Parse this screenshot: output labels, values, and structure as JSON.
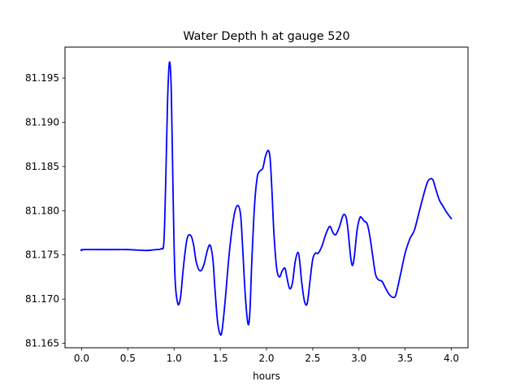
{
  "chart_data": {
    "type": "line",
    "title": "Water Depth h at gauge 520",
    "xlabel": "hours",
    "ylabel": "",
    "xlim": [
      -0.18,
      4.18
    ],
    "ylim": [
      81.1645,
      81.1985
    ],
    "x_ticks": [
      0.0,
      0.5,
      1.0,
      1.5,
      2.0,
      2.5,
      3.0,
      3.5,
      4.0
    ],
    "x_tick_labels": [
      "0.0",
      "0.5",
      "1.0",
      "1.5",
      "2.0",
      "2.5",
      "3.0",
      "3.5",
      "4.0"
    ],
    "y_ticks": [
      81.165,
      81.17,
      81.175,
      81.18,
      81.185,
      81.19,
      81.195
    ],
    "y_tick_labels": [
      "81.165",
      "81.170",
      "81.175",
      "81.180",
      "81.185",
      "81.190",
      "81.195"
    ],
    "grid": false,
    "series_color": "#0000ff",
    "series": [
      {
        "x": [
          0.0,
          0.02,
          0.3,
          0.5,
          0.7,
          0.8,
          0.86,
          0.89,
          0.91,
          0.93,
          0.95,
          0.97,
          0.99,
          1.01,
          1.04,
          1.07,
          1.1,
          1.14,
          1.18,
          1.21,
          1.24,
          1.28,
          1.32,
          1.36,
          1.39,
          1.42,
          1.44,
          1.47,
          1.5,
          1.52,
          1.55,
          1.6,
          1.65,
          1.69,
          1.72,
          1.74,
          1.77,
          1.8,
          1.82,
          1.84,
          1.87,
          1.9,
          1.93,
          1.96,
          1.99,
          2.02,
          2.04,
          2.06,
          2.08,
          2.11,
          2.14,
          2.17,
          2.2,
          2.22,
          2.25,
          2.28,
          2.31,
          2.34,
          2.36,
          2.38,
          2.41,
          2.44,
          2.47,
          2.5,
          2.53,
          2.56,
          2.6,
          2.64,
          2.68,
          2.7,
          2.72,
          2.75,
          2.79,
          2.83,
          2.86,
          2.88,
          2.91,
          2.93,
          2.95,
          2.98,
          3.01,
          3.03,
          3.06,
          3.09,
          3.12,
          3.15,
          3.18,
          3.21,
          3.25,
          3.29,
          3.33,
          3.37,
          3.4,
          3.45,
          3.5,
          3.55,
          3.6,
          3.65,
          3.7,
          3.74,
          3.77,
          3.8,
          3.83,
          3.87,
          3.91,
          3.95,
          4.0
        ],
        "y": [
          81.1755,
          81.1756,
          81.1756,
          81.1756,
          81.1755,
          81.1756,
          81.1757,
          81.1765,
          81.1835,
          81.1925,
          81.1968,
          81.1935,
          81.1815,
          81.1725,
          81.1695,
          81.1702,
          81.1735,
          81.1768,
          81.1772,
          81.1762,
          81.1742,
          81.1732,
          81.1738,
          81.1755,
          81.1761,
          81.1745,
          81.1715,
          81.1675,
          81.166,
          81.1665,
          81.1695,
          81.1755,
          81.1795,
          81.1806,
          81.1795,
          81.1762,
          81.1705,
          81.1672,
          81.1685,
          81.174,
          81.1805,
          81.1838,
          81.1845,
          81.1848,
          81.1862,
          81.1868,
          81.1858,
          81.182,
          81.1775,
          81.1735,
          81.1725,
          81.1732,
          81.1735,
          81.1725,
          81.1712,
          81.1718,
          81.1742,
          81.1753,
          81.1742,
          81.172,
          81.1698,
          81.1695,
          81.172,
          81.1745,
          81.1752,
          81.1752,
          81.176,
          81.1773,
          81.1782,
          81.178,
          81.1775,
          81.1773,
          81.1782,
          81.1795,
          81.1793,
          81.178,
          81.1748,
          81.1738,
          81.1748,
          81.1778,
          81.1792,
          81.1792,
          81.1788,
          81.1785,
          81.177,
          81.1748,
          81.1728,
          81.1722,
          81.172,
          81.1712,
          81.1705,
          81.1702,
          81.1705,
          81.1728,
          81.1752,
          81.1768,
          81.1778,
          81.1798,
          81.1818,
          81.1832,
          81.1836,
          81.1835,
          81.1825,
          81.1812,
          81.1805,
          81.1798,
          81.1791
        ]
      }
    ]
  }
}
